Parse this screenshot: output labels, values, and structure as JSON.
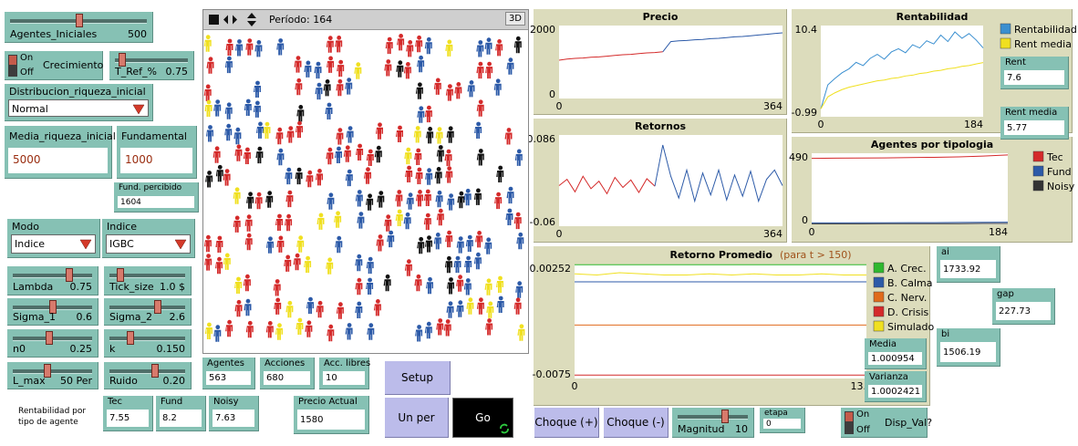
{
  "interface": {
    "sliders": [
      {
        "name": "Agentes_Iniciales",
        "value": "500"
      },
      {
        "name": "T_Ref_%",
        "value": "0.75"
      },
      {
        "name": "Lambda",
        "value": "0.75"
      },
      {
        "name": "Tick_size",
        "value": "1.0 $"
      },
      {
        "name": "Sigma_1",
        "value": "0.6"
      },
      {
        "name": "Sigma_2",
        "value": "2.6"
      },
      {
        "name": "n0",
        "value": "0.25"
      },
      {
        "name": "k",
        "value": "0.150"
      },
      {
        "name": "L_max",
        "value": "50 Per"
      },
      {
        "name": "Ruido",
        "value": "0.20"
      },
      {
        "name": "Magnitud",
        "value": "10"
      }
    ],
    "switch_on": "On",
    "switch_off": "Off",
    "switches": [
      "Crecimiento",
      "Disp_Val?"
    ],
    "choosers": [
      {
        "name": "Distribucion_riqueza_inicial",
        "value": "Normal"
      },
      {
        "name": "Modo",
        "value": "Indice"
      },
      {
        "name": "Indice",
        "value": "IGBC"
      }
    ],
    "inputs": [
      {
        "name": "Media_riqueza_inicial",
        "value": "5000"
      },
      {
        "name": "Fundamental",
        "value": "1000"
      }
    ],
    "monitors": [
      {
        "name": "Fund. percibido",
        "value": "1604"
      },
      {
        "name": "Agentes",
        "value": "563"
      },
      {
        "name": "Acciones",
        "value": "680"
      },
      {
        "name": "Acc. libres",
        "value": "10"
      },
      {
        "name": "Tec",
        "value": "7.55"
      },
      {
        "name": "Fund",
        "value": "8.2"
      },
      {
        "name": "Noisy",
        "value": "7.63"
      },
      {
        "name": "Precio Actual",
        "value": "1580"
      },
      {
        "name": "Rent",
        "value": "7.6"
      },
      {
        "name": "Rent media",
        "value": "5.77"
      },
      {
        "name": "Media",
        "value": "1.000954"
      },
      {
        "name": "Varianza",
        "value": "1.0002421"
      },
      {
        "name": "ai",
        "value": "1733.92"
      },
      {
        "name": "gap",
        "value": "227.73"
      },
      {
        "name": "bi",
        "value": "1506.19"
      },
      {
        "name": "etapa",
        "value": "0"
      }
    ],
    "buttons": [
      "Setup",
      "Un per",
      "Go",
      "Choque (+)",
      "Choque (-)"
    ],
    "note": "Rentabilidad por tipo de agente",
    "view": {
      "period": "Período: 164",
      "mode_button": "3D"
    }
  },
  "chart_data": [
    {
      "type": "line",
      "title": "Precio",
      "x": [
        0,
        13,
        26,
        39,
        52,
        65,
        78,
        91,
        104,
        117,
        130,
        143,
        156,
        169,
        182,
        195,
        208,
        221,
        234,
        247,
        260,
        273,
        286,
        299,
        312,
        325,
        338,
        351,
        364
      ],
      "series": [
        {
          "color": "#d42a2a",
          "values": [
            1050,
            1080,
            1100,
            1110,
            1130,
            1140,
            1160,
            1180,
            1200,
            1210,
            1230,
            1250,
            1260,
            1280,
            null,
            null,
            null,
            null,
            null,
            null,
            null,
            null,
            null,
            null,
            null,
            null,
            null,
            null,
            null
          ]
        },
        {
          "color": "#2c5aa8",
          "values": [
            null,
            null,
            null,
            null,
            null,
            null,
            null,
            null,
            null,
            null,
            null,
            null,
            null,
            1280,
            1560,
            1580,
            1590,
            1610,
            1620,
            1640,
            1650,
            1670,
            1690,
            1700,
            1720,
            1740,
            1760,
            1780,
            1800
          ]
        }
      ],
      "xlim": [
        0,
        364
      ],
      "ylim": [
        0,
        2000
      ],
      "xticks": [
        0,
        364
      ],
      "yticks": [
        0,
        2000
      ]
    },
    {
      "type": "line",
      "title": "Rentabilidad",
      "x": [
        0,
        8,
        16,
        24,
        32,
        40,
        48,
        56,
        64,
        72,
        80,
        88,
        96,
        104,
        112,
        120,
        128,
        136,
        144,
        152,
        160,
        168,
        176,
        184
      ],
      "series": [
        {
          "name": "Rentabilidad",
          "color": "#3a8fd0",
          "values": [
            0,
            3,
            3.8,
            4.5,
            5,
            5.8,
            5.4,
            6.3,
            6.8,
            6.2,
            7.1,
            7.5,
            7,
            8,
            7.6,
            8.5,
            8.1,
            9.2,
            8.4,
            9.6,
            8.8,
            9.4,
            8.6,
            7.6
          ]
        },
        {
          "name": "Rent media",
          "color": "#f0e020",
          "values": [
            0,
            1.5,
            2,
            2.4,
            2.7,
            2.9,
            3.1,
            3.3,
            3.5,
            3.6,
            3.8,
            3.9,
            4.1,
            4.2,
            4.4,
            4.5,
            4.7,
            4.8,
            5,
            5.1,
            5.3,
            5.4,
            5.6,
            5.77
          ]
        }
      ],
      "xlim": [
        0,
        184
      ],
      "ylim": [
        -0.99,
        10.4
      ],
      "xticks": [
        0,
        184
      ],
      "yticks": [
        -0.99,
        10.4
      ]
    },
    {
      "type": "line",
      "title": "Retornos",
      "x": [
        0,
        13,
        26,
        39,
        52,
        65,
        78,
        91,
        104,
        117,
        130,
        143,
        156,
        169,
        182,
        195,
        208,
        221,
        234,
        247,
        260,
        273,
        286,
        299,
        312,
        325,
        338,
        351,
        364
      ],
      "series": [
        {
          "color": "#d42a2a",
          "values": [
            0.005,
            0.015,
            -0.005,
            0.02,
            0,
            0.012,
            -0.008,
            0.018,
            0.002,
            0.014,
            -0.006,
            0.016,
            0.004,
            null,
            null,
            null,
            null,
            null,
            null,
            null,
            null,
            null,
            null,
            null,
            null,
            null,
            null,
            null,
            null
          ]
        },
        {
          "color": "#2c5aa8",
          "values": [
            null,
            null,
            null,
            null,
            null,
            null,
            null,
            null,
            null,
            null,
            null,
            null,
            0.004,
            0.07,
            0.02,
            -0.015,
            0.03,
            -0.02,
            0.025,
            -0.01,
            0.03,
            -0.018,
            0.022,
            -0.012,
            0.028,
            -0.02,
            0.015,
            0.03,
            0.005
          ]
        }
      ],
      "xlim": [
        0,
        364
      ],
      "ylim": [
        -0.06,
        0.086
      ],
      "xticks": [
        0,
        364
      ],
      "yticks": [
        -0.06,
        0.086
      ]
    },
    {
      "type": "line",
      "title": "Agentes por tipologia",
      "x": [
        0,
        23,
        46,
        69,
        92,
        115,
        138,
        161,
        184
      ],
      "series": [
        {
          "name": "Tec",
          "color": "#d42a2a",
          "values": [
            455,
            456,
            457,
            458,
            460,
            462,
            465,
            470,
            478
          ]
        },
        {
          "name": "Fund",
          "color": "#2c5aa8",
          "values": [
            10,
            10,
            11,
            11,
            12,
            12,
            13,
            14,
            15
          ]
        },
        {
          "name": "Noisy",
          "color": "#333333",
          "values": [
            4,
            4,
            4,
            5,
            5,
            5,
            5,
            6,
            6
          ]
        }
      ],
      "xlim": [
        0,
        184
      ],
      "ylim": [
        0,
        490
      ],
      "xticks": [
        0,
        184
      ],
      "yticks": [
        0,
        490
      ]
    },
    {
      "type": "line",
      "title": "Retorno Promedio",
      "subtitle": "(para t > 150)",
      "x": [
        0,
        1,
        2,
        3,
        4,
        5,
        6,
        7,
        8,
        9,
        10,
        11,
        12,
        13
      ],
      "series": [
        {
          "name": "A. Crec.",
          "color": "#2eb82e",
          "values": [
            0.0025,
            0.0025,
            0.0025,
            0.0025,
            0.0025,
            0.0025,
            0.0025,
            0.0025,
            0.0025,
            0.0025,
            0.0025,
            0.0025,
            0.0025,
            0.0025
          ]
        },
        {
          "name": "B. Calma",
          "color": "#2c5aa8",
          "values": [
            0.001,
            0.001,
            0.001,
            0.001,
            0.001,
            0.001,
            0.001,
            0.001,
            0.001,
            0.001,
            0.001,
            0.001,
            0.001,
            0.001
          ]
        },
        {
          "name": "C. Nerv.",
          "color": "#e06a1b",
          "values": [
            -0.0028,
            -0.0028,
            -0.0028,
            -0.0028,
            -0.0028,
            -0.0028,
            -0.0028,
            -0.0028,
            -0.0028,
            -0.0028,
            -0.0028,
            -0.0028,
            -0.0028,
            -0.0028
          ]
        },
        {
          "name": "D. Crisis",
          "color": "#d42a2a",
          "values": [
            -0.0072,
            -0.0072,
            -0.0072,
            -0.0072,
            -0.0072,
            -0.0072,
            -0.0072,
            -0.0072,
            -0.0072,
            -0.0072,
            -0.0072,
            -0.0072,
            -0.0072,
            -0.0072
          ]
        },
        {
          "name": "Simulado",
          "color": "#f0e020",
          "values": [
            0.0017,
            0.0016,
            0.0018,
            0.0017,
            0.0016,
            0.0016,
            0.0017,
            0.0016,
            0.0017,
            0.0016,
            0.0016,
            0.0017,
            0.0016,
            0.0016
          ]
        }
      ],
      "xlim": [
        0,
        13
      ],
      "ylim": [
        -0.0075,
        0.00252
      ],
      "xticks": [
        0,
        {
          "value": 13,
          "label": "13."
        }
      ],
      "yticks": [
        -0.0075,
        0.00252
      ]
    }
  ]
}
